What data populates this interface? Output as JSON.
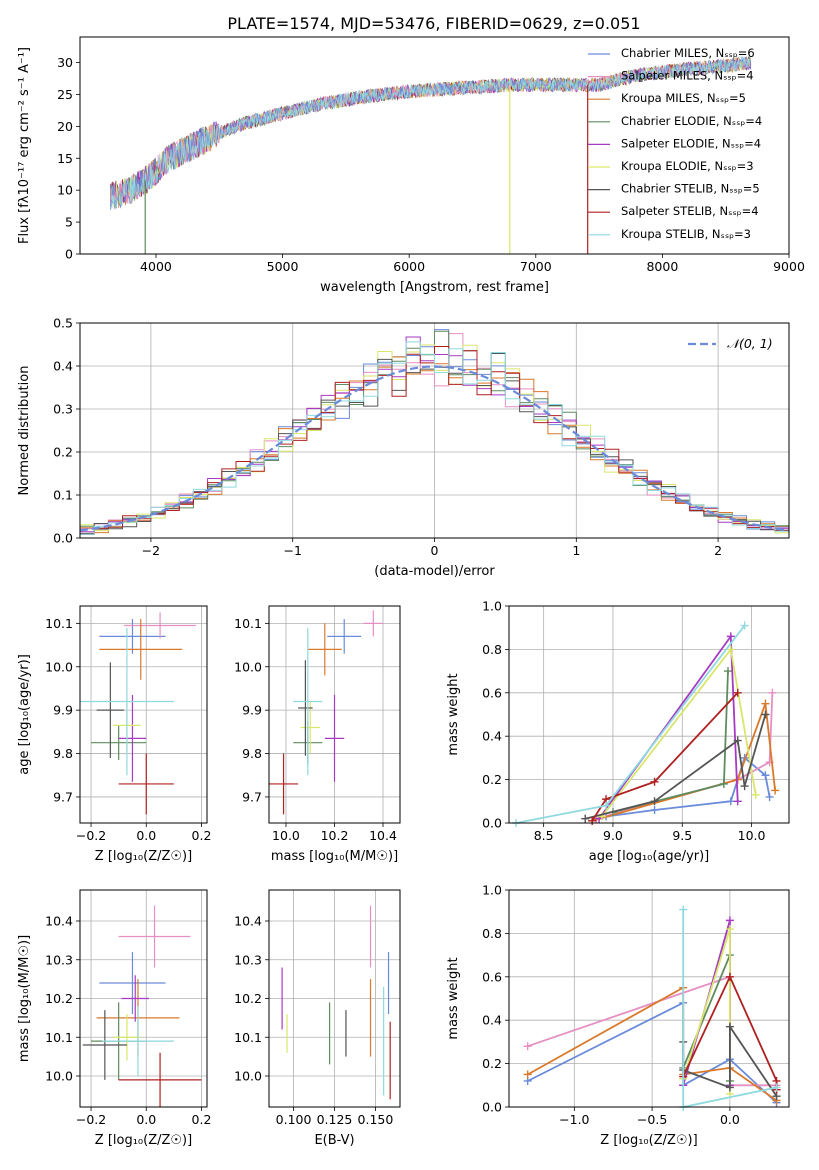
{
  "title": "PLATE=1574, MJD=53476, FIBERID=0629, z=0.051",
  "colors": {
    "series": [
      "#6a8bd9",
      "#e68fc3",
      "#d9792b",
      "#5f8c5f",
      "#a73ac2",
      "#d9e66b",
      "#555555",
      "#b02020",
      "#8fd9e0"
    ],
    "grid": "#b0b0b0",
    "normal_curve": "#6a8bd9"
  },
  "chart_data": [
    {
      "id": "spectrum",
      "type": "line",
      "xlabel": "wavelength [Angstrom, rest frame]",
      "ylabel": "Flux [fλ10⁻¹⁷ erg cm⁻² s⁻¹ A⁻¹]",
      "xlim": [
        3400,
        9000
      ],
      "ylim": [
        0,
        34
      ],
      "xticks": [
        4000,
        5000,
        6000,
        7000,
        8000,
        9000
      ],
      "yticks": [
        0,
        5,
        10,
        15,
        20,
        25,
        30
      ],
      "grid": false,
      "legend_position": "top-right",
      "legend": [
        "Chabrier MILES, Nₛₛₚ=6",
        "Salpeter MILES, Nₛₛₚ=4",
        "Kroupa MILES, Nₛₛₚ=5",
        "Chabrier ELODIE, Nₛₛₚ=4",
        "Salpeter ELODIE, Nₛₛₚ=4",
        "Kroupa ELODIE, Nₛₛₚ=3",
        "Chabrier STELIB, Nₛₛₚ=5",
        "Salpeter STELIB, Nₛₛₚ=4",
        "Kroupa STELIB, Nₛₛₚ=3"
      ],
      "continuum": [
        [
          3640,
          9
        ],
        [
          3800,
          10
        ],
        [
          3950,
          12
        ],
        [
          4100,
          15
        ],
        [
          4300,
          17
        ],
        [
          4500,
          19
        ],
        [
          4700,
          20.5
        ],
        [
          5000,
          22
        ],
        [
          5300,
          23.5
        ],
        [
          5600,
          24.5
        ],
        [
          6000,
          25.5
        ],
        [
          6400,
          26
        ],
        [
          6800,
          26.5
        ],
        [
          7200,
          26.5
        ],
        [
          7500,
          26.5
        ],
        [
          7800,
          28
        ],
        [
          8200,
          29
        ],
        [
          8500,
          29.5
        ],
        [
          8700,
          30
        ]
      ],
      "drop_lines": [
        {
          "x": 3915,
          "series": 3
        },
        {
          "x": 6795,
          "series": 5
        },
        {
          "x": 7410,
          "series": 7
        }
      ]
    },
    {
      "id": "residuals",
      "type": "histogram",
      "xlabel": "(data-model)/error",
      "ylabel": "Normed distribution",
      "xlim": [
        -2.5,
        2.5
      ],
      "ylim": [
        0,
        0.5
      ],
      "xticks": [
        -2,
        -1,
        0,
        1,
        2
      ],
      "yticks": [
        0.0,
        0.1,
        0.2,
        0.3,
        0.4,
        0.5
      ],
      "grid": true,
      "legend_position": "top-right",
      "legend": [
        "𝒩(0, 1)"
      ],
      "bin_width": 0.1
    },
    {
      "id": "age_vs_Z",
      "type": "scatter",
      "xlabel": "Z [log₁₀(Z/Z☉)]",
      "ylabel": "age  [log₁₀(age/yr)]",
      "xlim": [
        -0.24,
        0.22
      ],
      "ylim": [
        9.64,
        10.14
      ],
      "xticks": [
        -0.2,
        0.0,
        0.2
      ],
      "yticks": [
        9.7,
        9.8,
        9.9,
        10.0,
        10.1
      ],
      "grid": true,
      "points": [
        {
          "x": -0.05,
          "y": 10.07,
          "xerr": 0.12,
          "yerr": 0.04
        },
        {
          "x": 0.05,
          "y": 10.095,
          "xerr": 0.13,
          "yerr": 0.03
        },
        {
          "x": -0.02,
          "y": 10.04,
          "xerr": 0.15,
          "yerr": 0.07
        },
        {
          "x": -0.1,
          "y": 9.825,
          "xerr": 0.1,
          "yerr": 0.04
        },
        {
          "x": -0.05,
          "y": 9.835,
          "xerr": 0.05,
          "yerr": 0.1
        },
        {
          "x": -0.07,
          "y": 9.865,
          "xerr": 0.05,
          "yerr": 0.06
        },
        {
          "x": -0.13,
          "y": 9.9,
          "xerr": 0.05,
          "yerr": 0.11
        },
        {
          "x": 0.0,
          "y": 9.73,
          "xerr": 0.1,
          "yerr": 0.07
        },
        {
          "x": -0.07,
          "y": 9.92,
          "xerr": 0.17,
          "yerr": 0.17
        }
      ]
    },
    {
      "id": "age_vs_mass",
      "type": "scatter",
      "xlabel": "mass [log₁₀(M/M☉)]",
      "ylabel": "",
      "xlim": [
        9.93,
        10.47
      ],
      "ylim": [
        9.64,
        10.14
      ],
      "xticks": [
        10.0,
        10.2,
        10.4
      ],
      "yticks": [
        9.7,
        9.8,
        9.9,
        10.0,
        10.1
      ],
      "grid": true,
      "points": [
        {
          "x": 10.24,
          "y": 10.07,
          "xerr": 0.07,
          "yerr": 0.04
        },
        {
          "x": 10.36,
          "y": 10.1,
          "xerr": 0.04,
          "yerr": 0.03
        },
        {
          "x": 10.16,
          "y": 10.04,
          "xerr": 0.07,
          "yerr": 0.06
        },
        {
          "x": 10.09,
          "y": 9.825,
          "xerr": 0.06,
          "yerr": 0.05
        },
        {
          "x": 10.2,
          "y": 9.835,
          "xerr": 0.04,
          "yerr": 0.1
        },
        {
          "x": 10.1,
          "y": 9.86,
          "xerr": 0.04,
          "yerr": 0.06
        },
        {
          "x": 10.08,
          "y": 9.905,
          "xerr": 0.03,
          "yerr": 0.11
        },
        {
          "x": 9.99,
          "y": 9.73,
          "xerr": 0.06,
          "yerr": 0.07
        },
        {
          "x": 10.09,
          "y": 9.92,
          "xerr": 0.06,
          "yerr": 0.17
        }
      ]
    },
    {
      "id": "weight_vs_age",
      "type": "line",
      "xlabel": "age  [log₁₀(age/yr)]",
      "ylabel": "mass weight",
      "xlim": [
        8.25,
        10.27
      ],
      "ylim": [
        0,
        1.0
      ],
      "xticks": [
        8.5,
        9.0,
        9.5,
        10.0
      ],
      "yticks": [
        0.0,
        0.2,
        0.4,
        0.6,
        0.8,
        1.0
      ],
      "grid": true,
      "series": [
        {
          "points": [
            [
              8.95,
              0.03
            ],
            [
              9.3,
              0.06
            ],
            [
              9.85,
              0.1
            ],
            [
              9.95,
              0.3
            ],
            [
              10.1,
              0.22
            ],
            [
              10.13,
              0.12
            ]
          ]
        },
        {
          "points": [
            [
              8.88,
              0.02
            ],
            [
              9.9,
              0.2
            ],
            [
              10.13,
              0.28
            ],
            [
              10.15,
              0.6
            ]
          ]
        },
        {
          "points": [
            [
              8.85,
              0.01
            ],
            [
              9.9,
              0.2
            ],
            [
              10.1,
              0.55
            ],
            [
              10.17,
              0.15
            ]
          ]
        },
        {
          "points": [
            [
              9.0,
              0.05
            ],
            [
              9.8,
              0.18
            ],
            [
              9.83,
              0.7
            ]
          ]
        },
        {
          "points": [
            [
              8.9,
              0.02
            ],
            [
              9.85,
              0.86
            ],
            [
              9.9,
              0.1
            ]
          ]
        },
        {
          "points": [
            [
              8.92,
              0.03
            ],
            [
              9.85,
              0.8
            ],
            [
              10.03,
              0.13
            ]
          ]
        },
        {
          "points": [
            [
              8.8,
              0.02
            ],
            [
              9.3,
              0.1
            ],
            [
              9.9,
              0.38
            ],
            [
              9.95,
              0.17
            ],
            [
              10.1,
              0.5
            ]
          ]
        },
        {
          "points": [
            [
              8.85,
              0.01
            ],
            [
              8.95,
              0.11
            ],
            [
              9.3,
              0.19
            ],
            [
              9.9,
              0.6
            ]
          ]
        },
        {
          "points": [
            [
              8.3,
              0.0
            ],
            [
              8.95,
              0.08
            ],
            [
              9.95,
              0.91
            ]
          ]
        }
      ]
    },
    {
      "id": "mass_vs_Z",
      "type": "scatter",
      "xlabel": "Z [log₁₀(Z/Z☉)]",
      "ylabel": "mass [log₁₀(M/M☉)]",
      "xlim": [
        -0.24,
        0.22
      ],
      "ylim": [
        9.92,
        10.48
      ],
      "xticks": [
        -0.2,
        0.0,
        0.2
      ],
      "yticks": [
        10.0,
        10.1,
        10.2,
        10.3,
        10.4
      ],
      "grid": true,
      "points": [
        {
          "x": -0.05,
          "y": 10.24,
          "xerr": 0.12,
          "yerr": 0.08
        },
        {
          "x": 0.03,
          "y": 10.36,
          "xerr": 0.13,
          "yerr": 0.08
        },
        {
          "x": -0.03,
          "y": 10.15,
          "xerr": 0.15,
          "yerr": 0.1
        },
        {
          "x": -0.1,
          "y": 10.09,
          "xerr": 0.1,
          "yerr": 0.1
        },
        {
          "x": -0.04,
          "y": 10.2,
          "xerr": 0.05,
          "yerr": 0.06
        },
        {
          "x": -0.07,
          "y": 10.1,
          "xerr": 0.05,
          "yerr": 0.06
        },
        {
          "x": -0.15,
          "y": 10.08,
          "xerr": 0.08,
          "yerr": 0.09
        },
        {
          "x": 0.05,
          "y": 9.99,
          "xerr": 0.15,
          "yerr": 0.07
        },
        {
          "x": -0.03,
          "y": 10.09,
          "xerr": 0.13,
          "yerr": 0.09
        }
      ]
    },
    {
      "id": "mass_vs_ebv",
      "type": "scatter",
      "xlabel": "E(B-V)",
      "ylabel": "",
      "xlim": [
        0.085,
        0.165
      ],
      "ylim": [
        9.92,
        10.48
      ],
      "xticks": [
        0.1,
        0.125,
        0.15
      ],
      "yticks": [
        10.0,
        10.1,
        10.2,
        10.3,
        10.4
      ],
      "grid": true,
      "points": [
        {
          "x": 0.158,
          "y": 10.24,
          "xerr": 0.0,
          "yerr": 0.08
        },
        {
          "x": 0.147,
          "y": 10.36,
          "xerr": 0.0,
          "yerr": 0.08
        },
        {
          "x": 0.147,
          "y": 10.15,
          "xerr": 0.0,
          "yerr": 0.1
        },
        {
          "x": 0.122,
          "y": 10.11,
          "xerr": 0.0,
          "yerr": 0.08
        },
        {
          "x": 0.093,
          "y": 10.2,
          "xerr": 0.0,
          "yerr": 0.08
        },
        {
          "x": 0.096,
          "y": 10.11,
          "xerr": 0.0,
          "yerr": 0.05
        },
        {
          "x": 0.132,
          "y": 10.11,
          "xerr": 0.0,
          "yerr": 0.06
        },
        {
          "x": 0.159,
          "y": 10.04,
          "xerr": 0.0,
          "yerr": 0.1
        },
        {
          "x": 0.155,
          "y": 10.09,
          "xerr": 0.0,
          "yerr": 0.14
        }
      ]
    },
    {
      "id": "weight_vs_Z",
      "type": "line",
      "xlabel": "Z [log₁₀(Z/Z☉)]",
      "ylabel": "mass weight",
      "xlim": [
        -1.42,
        0.38
      ],
      "ylim": [
        0,
        1.0
      ],
      "xticks": [
        -1.0,
        -0.5,
        0.0
      ],
      "yticks": [
        0.0,
        0.2,
        0.4,
        0.6,
        0.8,
        1.0
      ],
      "grid": true,
      "series": [
        {
          "points": [
            [
              -1.3,
              0.12
            ],
            [
              -0.3,
              0.48
            ],
            [
              -0.3,
              0.1
            ],
            [
              0.0,
              0.22
            ],
            [
              0.3,
              0.02
            ]
          ]
        },
        {
          "points": [
            [
              -1.3,
              0.28
            ],
            [
              0.0,
              0.6
            ],
            [
              0.0,
              0.1
            ],
            [
              0.3,
              0.1
            ]
          ]
        },
        {
          "points": [
            [
              -1.3,
              0.15
            ],
            [
              -0.3,
              0.55
            ],
            [
              -0.3,
              0.15
            ],
            [
              0.0,
              0.18
            ],
            [
              0.3,
              0.03
            ]
          ]
        },
        {
          "points": [
            [
              -0.3,
              0.18
            ],
            [
              0.0,
              0.7
            ],
            [
              0.0,
              0.12
            ]
          ]
        },
        {
          "points": [
            [
              -0.3,
              0.1
            ],
            [
              0.0,
              0.86
            ],
            [
              0.0,
              0.1
            ]
          ]
        },
        {
          "points": [
            [
              -0.3,
              0.13
            ],
            [
              0.0,
              0.82
            ],
            [
              0.0,
              0.06
            ]
          ]
        },
        {
          "points": [
            [
              -0.3,
              0.3
            ],
            [
              -0.3,
              0.17
            ],
            [
              0.0,
              0.09
            ],
            [
              0.0,
              0.37
            ],
            [
              0.3,
              0.05
            ]
          ]
        },
        {
          "points": [
            [
              -0.3,
              0.14
            ],
            [
              0.0,
              0.6
            ],
            [
              0.3,
              0.12
            ],
            [
              0.3,
              0.08
            ]
          ]
        },
        {
          "points": [
            [
              -0.3,
              0.91
            ],
            [
              -0.3,
              0.0
            ],
            [
              0.3,
              0.09
            ]
          ]
        }
      ]
    }
  ]
}
